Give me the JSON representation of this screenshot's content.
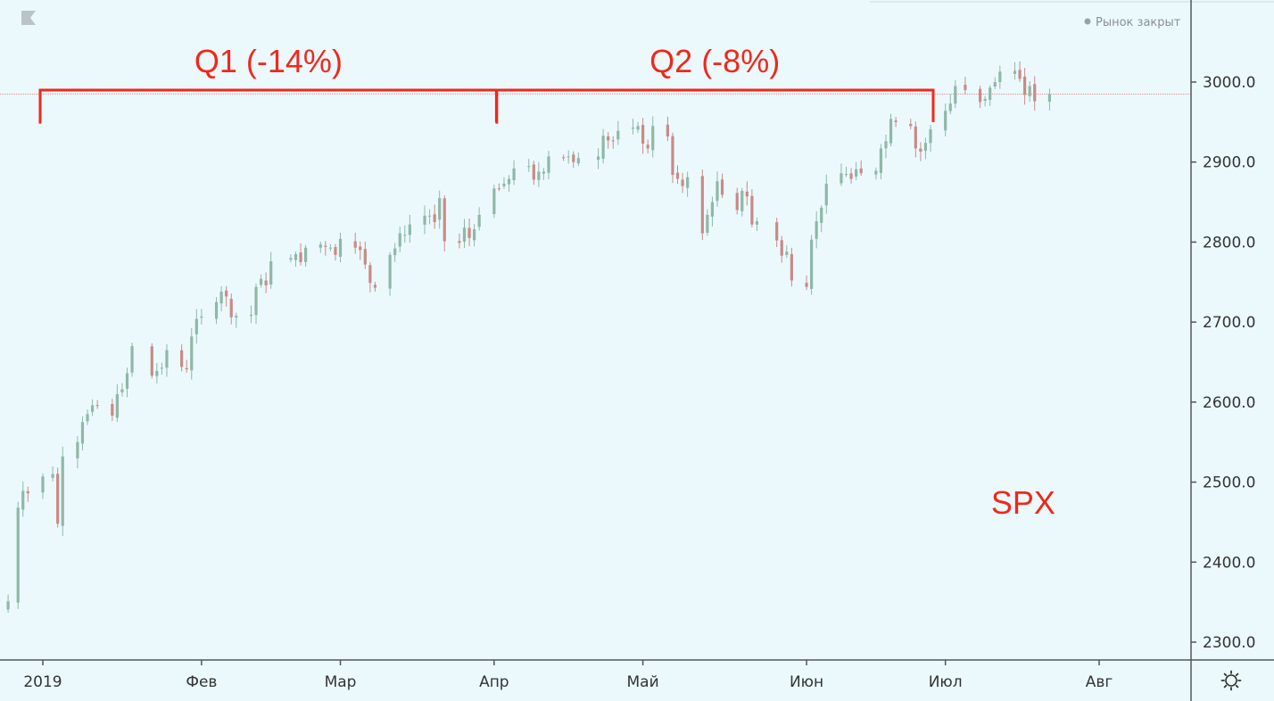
{
  "market_status": "Рынок закрыт",
  "colors": {
    "background": "#ebf9fd",
    "up": "#8fb8a6",
    "down": "#c98a85",
    "annotation": "#f0281c",
    "price_line": "#e8898a",
    "axis": "#555555"
  },
  "icons": {
    "logo": "flag-logo-icon",
    "settings": "gear-icon"
  },
  "chart_data": {
    "type": "candlestick",
    "ylim": [
      2280,
      3050
    ],
    "yticks": [
      2300,
      2400,
      2500,
      2600,
      2700,
      2800,
      2900,
      3000
    ],
    "ytick_labels": [
      "2300.0",
      "2400.0",
      "2500.0",
      "2600.0",
      "2700.0",
      "2800.0",
      "2900.0",
      "3000.0"
    ],
    "xlim": [
      "2018-12-24",
      "2019-08-20"
    ],
    "xticks": [
      {
        "date": "2018-12-31",
        "label": "2019"
      },
      {
        "date": "2019-02-01",
        "label": "Фев"
      },
      {
        "date": "2019-03-01",
        "label": "Мар"
      },
      {
        "date": "2019-04-01",
        "label": "Апр"
      },
      {
        "date": "2019-05-01",
        "label": "Май"
      },
      {
        "date": "2019-06-03",
        "label": "Июн"
      },
      {
        "date": "2019-07-01",
        "label": "Июл"
      },
      {
        "date": "2019-08-01",
        "label": "Авг"
      }
    ],
    "last_price": 2985,
    "series": [
      {
        "values": [
          [
            "2018-12-24",
            2351
          ],
          [
            "2018-12-26",
            2468
          ],
          [
            "2018-12-27",
            2489
          ],
          [
            "2018-12-28",
            2486
          ],
          [
            "2018-12-31",
            2507
          ],
          [
            "2019-01-02",
            2510
          ],
          [
            "2019-01-03",
            2448
          ],
          [
            "2019-01-04",
            2532
          ],
          [
            "2019-01-07",
            2550
          ],
          [
            "2019-01-08",
            2575
          ],
          [
            "2019-01-09",
            2585
          ],
          [
            "2019-01-10",
            2596
          ],
          [
            "2019-01-11",
            2596
          ],
          [
            "2019-01-14",
            2583
          ],
          [
            "2019-01-15",
            2610
          ],
          [
            "2019-01-16",
            2616
          ],
          [
            "2019-01-17",
            2636
          ],
          [
            "2019-01-18",
            2670
          ],
          [
            "2019-01-22",
            2633
          ],
          [
            "2019-01-23",
            2639
          ],
          [
            "2019-01-24",
            2643
          ],
          [
            "2019-01-25",
            2665
          ],
          [
            "2019-01-28",
            2644
          ],
          [
            "2019-01-29",
            2641
          ],
          [
            "2019-01-30",
            2682
          ],
          [
            "2019-01-31",
            2704
          ],
          [
            "2019-02-01",
            2707
          ],
          [
            "2019-02-04",
            2725
          ],
          [
            "2019-02-05",
            2738
          ],
          [
            "2019-02-06",
            2732
          ],
          [
            "2019-02-07",
            2706
          ],
          [
            "2019-02-08",
            2708
          ],
          [
            "2019-02-11",
            2709
          ],
          [
            "2019-02-12",
            2744
          ],
          [
            "2019-02-13",
            2754
          ],
          [
            "2019-02-14",
            2746
          ],
          [
            "2019-02-15",
            2776
          ],
          [
            "2019-02-19",
            2780
          ],
          [
            "2019-02-20",
            2785
          ],
          [
            "2019-02-21",
            2775
          ],
          [
            "2019-02-22",
            2793
          ],
          [
            "2019-02-25",
            2797
          ],
          [
            "2019-02-26",
            2794
          ],
          [
            "2019-02-27",
            2793
          ],
          [
            "2019-02-28",
            2784
          ],
          [
            "2019-03-01",
            2804
          ],
          [
            "2019-03-04",
            2793
          ],
          [
            "2019-03-05",
            2790
          ],
          [
            "2019-03-06",
            2772
          ],
          [
            "2019-03-07",
            2749
          ],
          [
            "2019-03-08",
            2743
          ],
          [
            "2019-03-11",
            2784
          ],
          [
            "2019-03-12",
            2792
          ],
          [
            "2019-03-13",
            2811
          ],
          [
            "2019-03-14",
            2809
          ],
          [
            "2019-03-15",
            2822
          ],
          [
            "2019-03-18",
            2833
          ],
          [
            "2019-03-19",
            2833
          ],
          [
            "2019-03-20",
            2825
          ],
          [
            "2019-03-21",
            2855
          ],
          [
            "2019-03-22",
            2801
          ],
          [
            "2019-03-25",
            2799
          ],
          [
            "2019-03-26",
            2818
          ],
          [
            "2019-03-27",
            2805
          ],
          [
            "2019-03-28",
            2816
          ],
          [
            "2019-03-29",
            2834
          ],
          [
            "2019-04-01",
            2867
          ],
          [
            "2019-04-02",
            2867
          ],
          [
            "2019-04-03",
            2873
          ],
          [
            "2019-04-04",
            2879
          ],
          [
            "2019-04-05",
            2892
          ],
          [
            "2019-04-08",
            2895
          ],
          [
            "2019-04-09",
            2878
          ],
          [
            "2019-04-10",
            2888
          ],
          [
            "2019-04-11",
            2888
          ],
          [
            "2019-04-12",
            2907
          ],
          [
            "2019-04-15",
            2905
          ],
          [
            "2019-04-16",
            2907
          ],
          [
            "2019-04-17",
            2900
          ],
          [
            "2019-04-18",
            2905
          ],
          [
            "2019-04-22",
            2907
          ],
          [
            "2019-04-23",
            2933
          ],
          [
            "2019-04-24",
            2927
          ],
          [
            "2019-04-25",
            2926
          ],
          [
            "2019-04-26",
            2939
          ],
          [
            "2019-04-29",
            2943
          ],
          [
            "2019-04-30",
            2945
          ],
          [
            "2019-05-01",
            2923
          ],
          [
            "2019-05-02",
            2917
          ],
          [
            "2019-05-03",
            2945
          ],
          [
            "2019-05-06",
            2932
          ],
          [
            "2019-05-07",
            2884
          ],
          [
            "2019-05-08",
            2879
          ],
          [
            "2019-05-09",
            2870
          ],
          [
            "2019-05-10",
            2881
          ],
          [
            "2019-05-13",
            2811
          ],
          [
            "2019-05-14",
            2834
          ],
          [
            "2019-05-15",
            2850
          ],
          [
            "2019-05-16",
            2876
          ],
          [
            "2019-05-17",
            2859
          ],
          [
            "2019-05-20",
            2840
          ],
          [
            "2019-05-21",
            2864
          ],
          [
            "2019-05-22",
            2857
          ],
          [
            "2019-05-23",
            2822
          ],
          [
            "2019-05-24",
            2826
          ],
          [
            "2019-05-28",
            2802
          ],
          [
            "2019-05-29",
            2783
          ],
          [
            "2019-05-30",
            2788
          ],
          [
            "2019-05-31",
            2752
          ],
          [
            "2019-06-03",
            2744
          ],
          [
            "2019-06-04",
            2803
          ],
          [
            "2019-06-05",
            2826
          ],
          [
            "2019-06-06",
            2843
          ],
          [
            "2019-06-07",
            2873
          ],
          [
            "2019-06-10",
            2886
          ],
          [
            "2019-06-11",
            2885
          ],
          [
            "2019-06-12",
            2879
          ],
          [
            "2019-06-13",
            2891
          ],
          [
            "2019-06-14",
            2886
          ],
          [
            "2019-06-17",
            2889
          ],
          [
            "2019-06-18",
            2917
          ],
          [
            "2019-06-19",
            2926
          ],
          [
            "2019-06-20",
            2954
          ],
          [
            "2019-06-21",
            2950
          ],
          [
            "2019-06-24",
            2945
          ],
          [
            "2019-06-25",
            2917
          ],
          [
            "2019-06-26",
            2913
          ],
          [
            "2019-06-27",
            2924
          ],
          [
            "2019-06-28",
            2941
          ],
          [
            "2019-07-01",
            2964
          ],
          [
            "2019-07-02",
            2973
          ],
          [
            "2019-07-03",
            2995
          ],
          [
            "2019-07-05",
            2990
          ],
          [
            "2019-07-08",
            2975
          ],
          [
            "2019-07-09",
            2979
          ],
          [
            "2019-07-10",
            2993
          ],
          [
            "2019-07-11",
            3000
          ],
          [
            "2019-07-12",
            3013
          ],
          [
            "2019-07-15",
            3014
          ],
          [
            "2019-07-16",
            3004
          ],
          [
            "2019-07-17",
            2984
          ],
          [
            "2019-07-18",
            2995
          ],
          [
            "2019-07-19",
            2976
          ],
          [
            "2019-07-22",
            2985
          ]
        ]
      }
    ],
    "annotations": [
      {
        "label": "Q1 (-14%)",
        "from": "2018-12-31",
        "to": "2019-04-01",
        "y": 2990,
        "tick_low": 2948
      },
      {
        "label": "Q2 (-8%)",
        "from": "2019-04-02",
        "to": "2019-06-28",
        "y": 2990,
        "tick_low": 2950
      },
      {
        "label": "SPX",
        "x": "2019-07-12",
        "y": 2475
      }
    ]
  }
}
